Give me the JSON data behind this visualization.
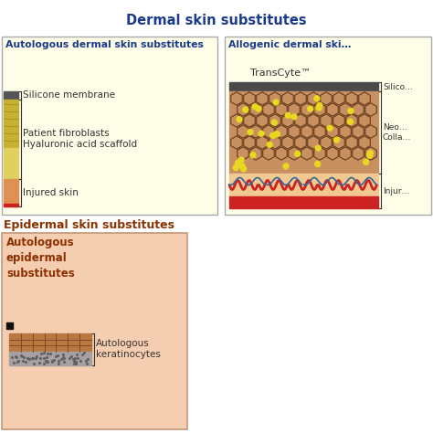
{
  "title": "Dermal skin substitutes",
  "title_color": "#1a3a8a",
  "title_fontsize": 10.5,
  "bg_color": "#ffffff",
  "panel1": {
    "title": "Autologous dermal skin substitutes",
    "title_color": "#1a3a8a",
    "bg_color": "#fefde8",
    "labels": [
      "Silicone membrane",
      "Patient fibroblasts\nHyaluronic acid scaffold",
      "Injured skin"
    ],
    "label_color": "#333333",
    "label_fontsize": 7.5
  },
  "panel2": {
    "title": "Allogenic dermal ski…",
    "title_color": "#1a3a8a",
    "bg_color": "#fefde8",
    "transcyte_label": "TransCyte™",
    "labels": [
      "Silico…",
      "Neo…\nColla…",
      "Injur…"
    ],
    "label_color": "#333333",
    "label_fontsize": 6.5
  },
  "panel3": {
    "title": "Autologous\nepidermal\nsubstitutes",
    "title_color": "#8b3000",
    "bg_color": "#f5cdb0",
    "label": "Autologous\nkeratinocytes",
    "label_color": "#333333",
    "label_fontsize": 7.5
  },
  "section_header": "Epidermal skin substitutes",
  "section_header_color": "#8b3000",
  "section_header_fontsize": 9
}
